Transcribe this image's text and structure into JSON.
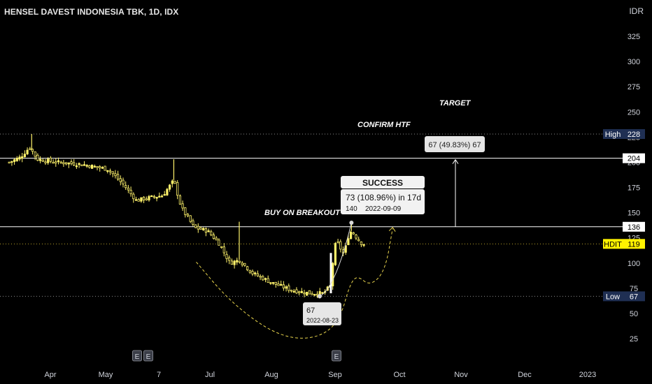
{
  "header": {
    "title": "HENSEL DAVEST INDONESIA TBK, 1D, IDX",
    "currency": "IDR"
  },
  "chart_data": {
    "type": "candlestick",
    "y_ticks": [
      25,
      50,
      75,
      100,
      125,
      150,
      175,
      200,
      225,
      250,
      275,
      300,
      325
    ],
    "x_ticks": [
      "Apr",
      "May",
      "7",
      "Jul",
      "Aug",
      "Sep",
      "Oct",
      "Nov",
      "Dec",
      "2023"
    ],
    "ylim": [
      10,
      345
    ],
    "grid": false,
    "price_path": [
      {
        "date": "2022-03-10",
        "price": 200
      },
      {
        "date": "2022-03-16",
        "price": 205
      },
      {
        "date": "2022-03-21",
        "price": 215
      },
      {
        "date": "2022-03-25",
        "price": 203
      },
      {
        "date": "2022-04-05",
        "price": 200
      },
      {
        "date": "2022-04-18",
        "price": 198
      },
      {
        "date": "2022-05-02",
        "price": 193
      },
      {
        "date": "2022-05-10",
        "price": 178
      },
      {
        "date": "2022-05-17",
        "price": 162
      },
      {
        "date": "2022-05-24",
        "price": 165
      },
      {
        "date": "2022-05-31",
        "price": 167
      },
      {
        "date": "2022-06-06",
        "price": 182
      },
      {
        "date": "2022-06-10",
        "price": 155
      },
      {
        "date": "2022-06-17",
        "price": 135
      },
      {
        "date": "2022-06-24",
        "price": 132
      },
      {
        "date": "2022-06-30",
        "price": 120
      },
      {
        "date": "2022-07-06",
        "price": 100
      },
      {
        "date": "2022-07-11",
        "price": 103
      },
      {
        "date": "2022-07-18",
        "price": 90
      },
      {
        "date": "2022-07-29",
        "price": 80
      },
      {
        "date": "2022-08-08",
        "price": 73
      },
      {
        "date": "2022-08-18",
        "price": 70
      },
      {
        "date": "2022-08-25",
        "price": 70
      },
      {
        "date": "2022-08-29",
        "price": 78
      },
      {
        "date": "2022-08-30",
        "price": 100
      },
      {
        "date": "2022-08-31",
        "price": 115
      },
      {
        "date": "2022-09-01",
        "price": 122
      },
      {
        "date": "2022-09-05",
        "price": 108
      },
      {
        "date": "2022-09-07",
        "price": 125
      },
      {
        "date": "2022-09-09",
        "price": 132
      },
      {
        "date": "2022-09-14",
        "price": 120
      },
      {
        "date": "2022-09-16",
        "price": 119
      }
    ],
    "spikes": [
      {
        "date": "2022-03-22",
        "high": 228
      },
      {
        "date": "2022-06-06",
        "high": 203
      },
      {
        "date": "2022-07-11",
        "high": 141
      },
      {
        "date": "2022-09-09",
        "high": 140
      }
    ],
    "levels": {
      "high": {
        "label": "High",
        "value": 228
      },
      "resistance": {
        "value": 204
      },
      "breakout": {
        "value": 136
      },
      "last": {
        "label": "HDIT",
        "value": 119
      },
      "low": {
        "label": "Low",
        "value": 67
      }
    },
    "annotations": {
      "target": "TARGET",
      "confirm": "CONFIRM HTF",
      "breakout": "BUY ON BREAKOUT",
      "target_box": "67 (49.83%) 67",
      "success_title": "SUCCESS",
      "success_line1": "73 (108.96%) in 17d",
      "success_line2": "140",
      "success_line2b": "2022-09-09",
      "low_value": "67",
      "low_date": "2022-08-23"
    },
    "event_markers": [
      "E",
      "E",
      "E"
    ]
  },
  "colors": {
    "background": "#000000",
    "candle": "#fff36b",
    "white_line": "#ffffff",
    "dotted": "#8a8a8a",
    "curve": "#e8d44d",
    "badge_blue": "#1f2f53",
    "badge_yellow": "#fff200",
    "axis_text": "#d1d4dc"
  }
}
